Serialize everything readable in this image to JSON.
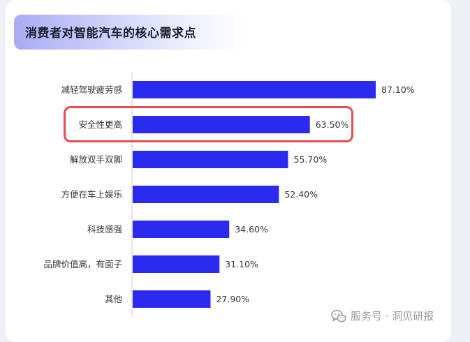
{
  "title": "消费者对智能汽车的核心需求点",
  "watermark": {
    "icon": "wechat-icon",
    "text": "服务号 · 洞见研报"
  },
  "colors": {
    "bar": "#2b2bf0",
    "highlight": "#e64b4f",
    "axis": "#c8c8c8",
    "label": "#333333"
  },
  "chart_data": {
    "type": "bar",
    "orientation": "horizontal",
    "categories": [
      "减轻驾驶疲劳感",
      "安全性更高",
      "解放双手双脚",
      "方便在车上娱乐",
      "科技感强",
      "品牌价值高，有面子",
      "其他"
    ],
    "values": [
      87.1,
      63.5,
      55.7,
      52.4,
      34.6,
      31.1,
      27.9
    ],
    "value_labels": [
      "87.10%",
      "63.50%",
      "55.70%",
      "52.40%",
      "34.60%",
      "31.10%",
      "27.90%"
    ],
    "unit": "%",
    "xlim": [
      0,
      100
    ],
    "grid": false,
    "legend": "none",
    "highlighted_category": "安全性更高"
  }
}
